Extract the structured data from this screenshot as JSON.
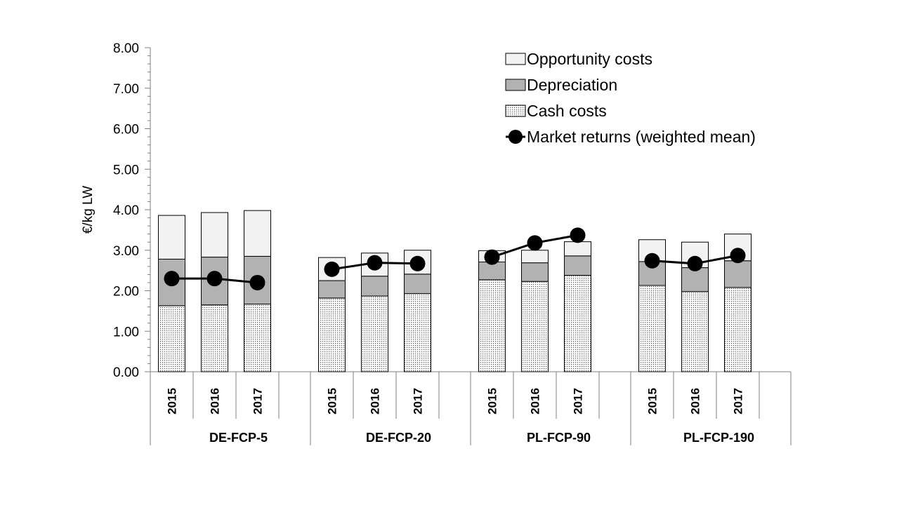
{
  "chart_data": {
    "type": "bar",
    "ylabel": "€/kg LW",
    "ylim": [
      0,
      8
    ],
    "yticks": [
      "0.00",
      "1.00",
      "2.00",
      "3.00",
      "4.00",
      "5.00",
      "6.00",
      "7.00",
      "8.00"
    ],
    "groups": [
      {
        "name": "DE-FCP-5",
        "years": [
          "2015",
          "2016",
          "2017"
        ]
      },
      {
        "name": "DE-FCP-20",
        "years": [
          "2015",
          "2016",
          "2017"
        ]
      },
      {
        "name": "PL-FCP-90",
        "years": [
          "2015",
          "2016",
          "2017"
        ]
      },
      {
        "name": "PL-FCP-190",
        "years": [
          "2015",
          "2016",
          "2017"
        ]
      }
    ],
    "series": [
      {
        "name": "Cash costs",
        "kind": "stacked-bar",
        "pattern": "dots",
        "values": [
          1.63,
          1.65,
          1.67,
          1.82,
          1.87,
          1.93,
          2.27,
          2.23,
          2.38,
          2.13,
          1.98,
          2.08
        ]
      },
      {
        "name": "Depreciation",
        "kind": "stacked-bar",
        "color": "#b2b2b2",
        "values": [
          1.15,
          1.18,
          1.18,
          0.43,
          0.49,
          0.48,
          0.44,
          0.46,
          0.48,
          0.59,
          0.59,
          0.66
        ]
      },
      {
        "name": "Opportunity costs",
        "kind": "stacked-bar",
        "color": "#f2f2f2",
        "values": [
          1.08,
          1.1,
          1.13,
          0.57,
          0.57,
          0.59,
          0.28,
          0.31,
          0.35,
          0.54,
          0.63,
          0.66
        ]
      },
      {
        "name": "Market returns (weighted mean)",
        "kind": "line",
        "color": "#000000",
        "values": [
          2.3,
          2.3,
          2.2,
          2.53,
          2.69,
          2.67,
          2.83,
          3.18,
          3.37,
          2.74,
          2.67,
          2.87
        ]
      }
    ],
    "legend": {
      "position": "top-right",
      "items": [
        "Opportunity costs",
        "Depreciation",
        "Cash costs",
        "Market returns (weighted mean)"
      ]
    },
    "grid": false
  }
}
